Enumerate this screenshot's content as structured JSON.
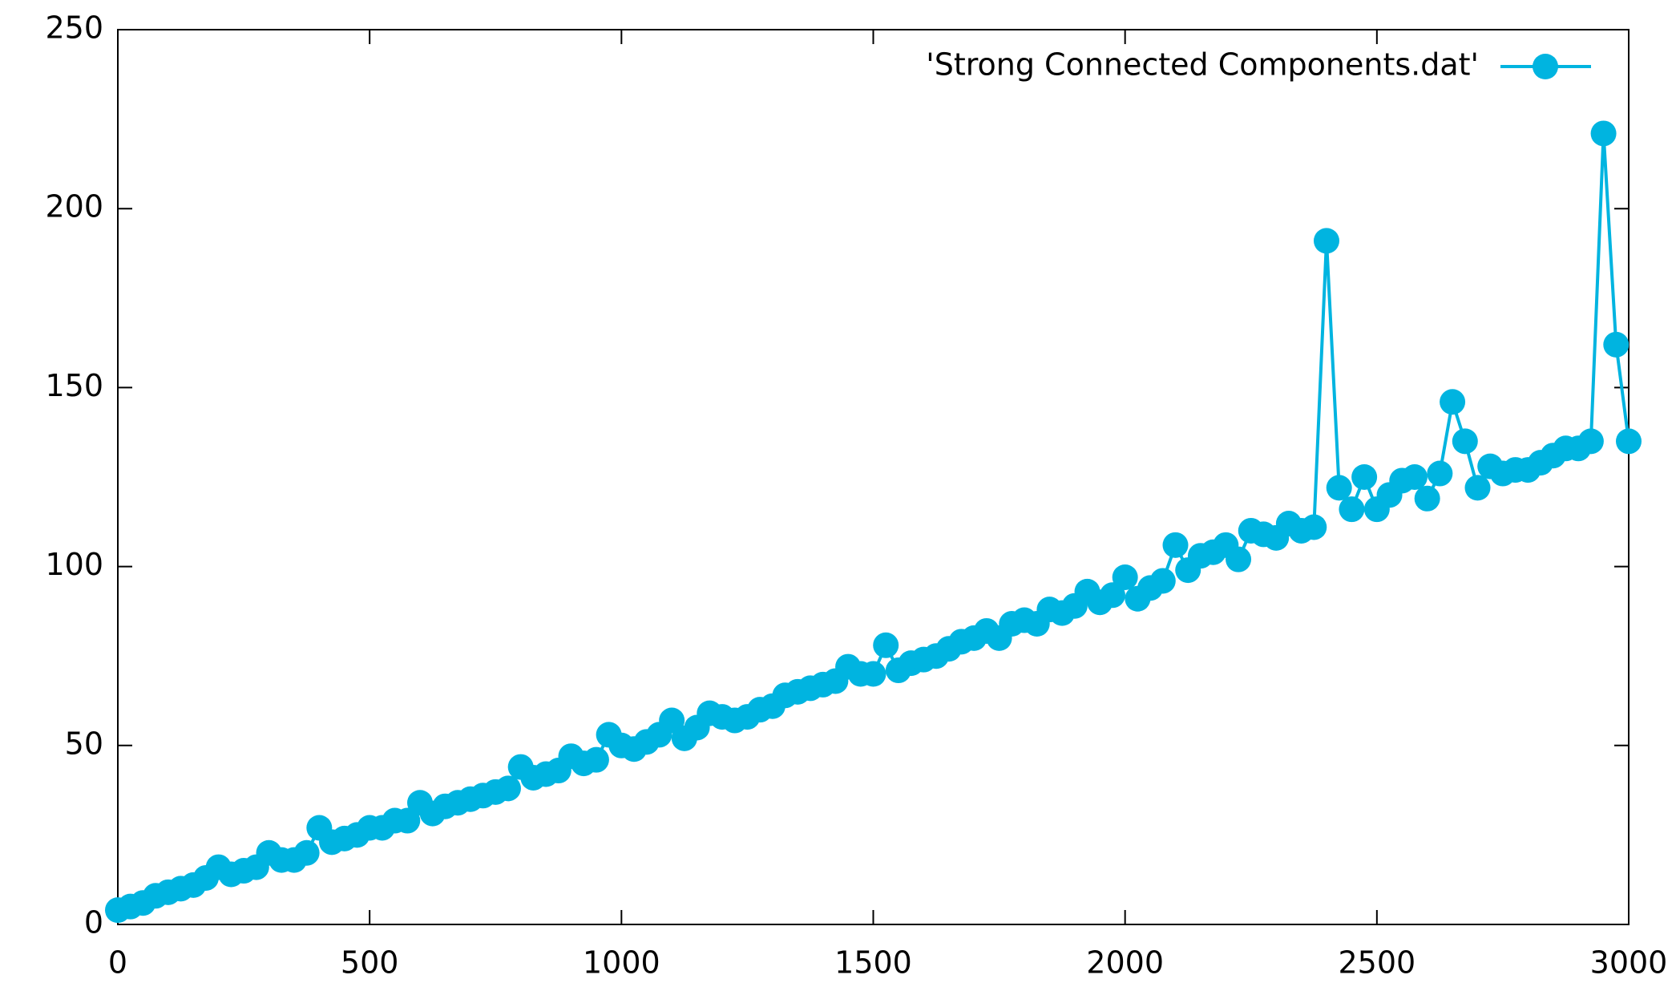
{
  "chart_data": {
    "type": "line",
    "legend": "top-right",
    "grid": false,
    "xlim": [
      0,
      3000
    ],
    "xticks": [
      0,
      500,
      1000,
      1500,
      2000,
      2500,
      3000
    ],
    "ylim": [
      0,
      250
    ],
    "yticks": [
      0,
      50,
      100,
      150,
      200,
      250
    ],
    "x": [
      0,
      25,
      50,
      75,
      100,
      125,
      150,
      175,
      200,
      225,
      250,
      275,
      300,
      325,
      350,
      375,
      400,
      425,
      450,
      475,
      500,
      525,
      550,
      575,
      600,
      625,
      650,
      675,
      700,
      725,
      750,
      775,
      800,
      825,
      850,
      875,
      900,
      925,
      950,
      975,
      1000,
      1025,
      1050,
      1075,
      1100,
      1125,
      1150,
      1175,
      1200,
      1225,
      1250,
      1275,
      1300,
      1325,
      1350,
      1375,
      1400,
      1425,
      1450,
      1475,
      1500,
      1525,
      1550,
      1575,
      1600,
      1625,
      1650,
      1675,
      1700,
      1725,
      1750,
      1775,
      1800,
      1825,
      1850,
      1875,
      1900,
      1925,
      1950,
      1975,
      2000,
      2025,
      2050,
      2075,
      2100,
      2125,
      2150,
      2175,
      2200,
      2225,
      2250,
      2275,
      2300,
      2325,
      2350,
      2375,
      2400,
      2425,
      2450,
      2475,
      2500,
      2525,
      2550,
      2575,
      2600,
      2625,
      2650,
      2675,
      2700,
      2725,
      2750,
      2775,
      2800,
      2825,
      2850,
      2875,
      2900,
      2925,
      2950,
      2975,
      3000
    ],
    "series": [
      {
        "name": "'Strong Connected Components.dat'",
        "color": "#00b4e0",
        "values": [
          4,
          5,
          6,
          8,
          9,
          10,
          11,
          13,
          16,
          14,
          15,
          16,
          20,
          18,
          18,
          20,
          27,
          23,
          24,
          25,
          27,
          27,
          29,
          29,
          34,
          31,
          33,
          34,
          35,
          36,
          37,
          38,
          44,
          41,
          42,
          43,
          47,
          45,
          46,
          53,
          50,
          49,
          51,
          53,
          57,
          52,
          55,
          59,
          58,
          57,
          58,
          60,
          61,
          64,
          65,
          66,
          67,
          68,
          72,
          70,
          70,
          78,
          71,
          73,
          74,
          75,
          77,
          79,
          80,
          82,
          80,
          84,
          85,
          84,
          88,
          87,
          89,
          93,
          90,
          92,
          97,
          91,
          94,
          96,
          106,
          99,
          103,
          104,
          106,
          102,
          110,
          109,
          108,
          112,
          110,
          111,
          191,
          122,
          116,
          125,
          116,
          120,
          124,
          125,
          119,
          126,
          146,
          135,
          122,
          128,
          126,
          127,
          127,
          129,
          131,
          133,
          133,
          135,
          221,
          162,
          135
        ]
      }
    ]
  }
}
